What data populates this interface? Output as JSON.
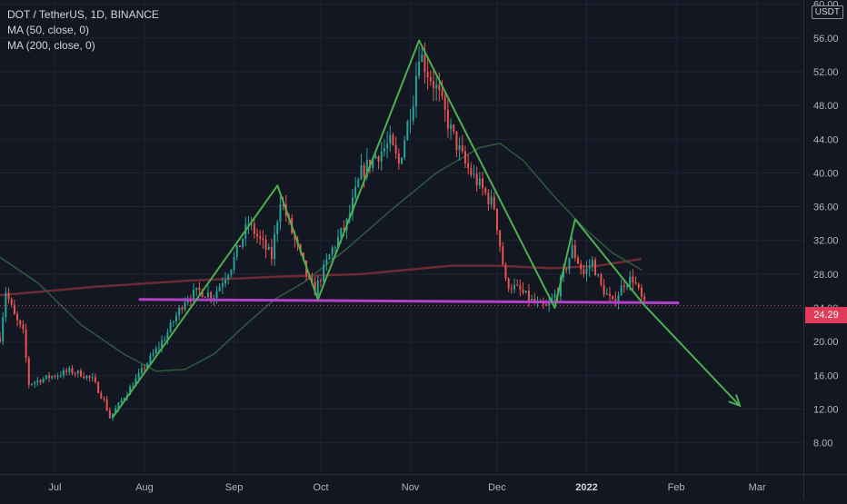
{
  "header": {
    "symbol_line": "DOT / TetherUS, 1D, BINANCE",
    "indicators": [
      "MA (50, close, 0)",
      "MA (200, close, 0)"
    ],
    "currency": "USDT"
  },
  "last_price": {
    "label": "24.29",
    "value": 24.29,
    "color": "#e03c5a"
  },
  "colors": {
    "background": "#131722",
    "up": "#26a69a",
    "down": "#ef5350",
    "ma50": "#2e5a3e",
    "ma200": "#6e2a33",
    "support": "#b040c8",
    "pattern": "#4caf50"
  },
  "chart_data": {
    "type": "candlestick",
    "title": "DOT / TetherUS, 1D, BINANCE",
    "y_axis": {
      "position": "right",
      "ticks": [
        8,
        12,
        16,
        20,
        24,
        28,
        32,
        36,
        40,
        44,
        48,
        52,
        56,
        60
      ],
      "tick_labels": [
        "8.00",
        "12.00",
        "16.00",
        "20.00",
        "24.00",
        "28.00",
        "32.00",
        "36.00",
        "40.00",
        "44.00",
        "48.00",
        "52.00",
        "56.00",
        "60.00"
      ],
      "range": [
        4.3,
        60.5
      ]
    },
    "x_axis": {
      "tick_labels": [
        "Jul",
        "Aug",
        "Sep",
        "Oct",
        "Nov",
        "Dec",
        "2022",
        "Feb",
        "Mar"
      ],
      "tick_dates": [
        "2021-07-01",
        "2021-08-01",
        "2021-09-01",
        "2021-10-01",
        "2021-11-01",
        "2021-12-01",
        "2022-01-01",
        "2022-02-01",
        "2022-03-01"
      ],
      "range": [
        "2021-06-12",
        "2022-03-17"
      ]
    },
    "price_path": [
      {
        "date": "2021-06-12",
        "price": 20.5
      },
      {
        "date": "2021-06-14",
        "price": 26.0
      },
      {
        "date": "2021-06-17",
        "price": 23.0
      },
      {
        "date": "2021-06-20",
        "price": 21.0
      },
      {
        "date": "2021-06-22",
        "price": 15.0
      },
      {
        "date": "2021-06-26",
        "price": 15.5
      },
      {
        "date": "2021-07-01",
        "price": 16.0
      },
      {
        "date": "2021-07-06",
        "price": 16.5
      },
      {
        "date": "2021-07-10",
        "price": 16.2
      },
      {
        "date": "2021-07-14",
        "price": 15.5
      },
      {
        "date": "2021-07-18",
        "price": 13.0
      },
      {
        "date": "2021-07-20",
        "price": 11.0
      },
      {
        "date": "2021-07-25",
        "price": 13.5
      },
      {
        "date": "2021-08-01",
        "price": 17.0
      },
      {
        "date": "2021-08-08",
        "price": 20.5
      },
      {
        "date": "2021-08-15",
        "price": 25.0
      },
      {
        "date": "2021-08-20",
        "price": 26.0
      },
      {
        "date": "2021-08-25",
        "price": 25.5
      },
      {
        "date": "2021-08-31",
        "price": 29.0
      },
      {
        "date": "2021-09-06",
        "price": 34.0
      },
      {
        "date": "2021-09-10",
        "price": 32.0
      },
      {
        "date": "2021-09-14",
        "price": 30.0
      },
      {
        "date": "2021-09-17",
        "price": 37.0
      },
      {
        "date": "2021-09-22",
        "price": 32.0
      },
      {
        "date": "2021-09-27",
        "price": 27.0
      },
      {
        "date": "2021-09-29",
        "price": 26.0
      },
      {
        "date": "2021-10-05",
        "price": 31.0
      },
      {
        "date": "2021-10-10",
        "price": 34.0
      },
      {
        "date": "2021-10-15",
        "price": 40.0
      },
      {
        "date": "2021-10-20",
        "price": 42.0
      },
      {
        "date": "2021-10-25",
        "price": 43.5
      },
      {
        "date": "2021-10-28",
        "price": 41.0
      },
      {
        "date": "2021-11-02",
        "price": 49.0
      },
      {
        "date": "2021-11-04",
        "price": 54.5
      },
      {
        "date": "2021-11-07",
        "price": 52.0
      },
      {
        "date": "2021-11-10",
        "price": 50.0
      },
      {
        "date": "2021-11-15",
        "price": 45.0
      },
      {
        "date": "2021-11-20",
        "price": 41.0
      },
      {
        "date": "2021-11-26",
        "price": 38.0
      },
      {
        "date": "2021-11-30",
        "price": 36.0
      },
      {
        "date": "2021-12-04",
        "price": 27.0
      },
      {
        "date": "2021-12-09",
        "price": 26.0
      },
      {
        "date": "2021-12-14",
        "price": 24.5
      },
      {
        "date": "2021-12-18",
        "price": 24.0
      },
      {
        "date": "2021-12-22",
        "price": 26.0
      },
      {
        "date": "2021-12-27",
        "price": 31.0
      },
      {
        "date": "2021-12-31",
        "price": 28.0
      },
      {
        "date": "2022-01-03",
        "price": 29.5
      },
      {
        "date": "2022-01-06",
        "price": 26.5
      },
      {
        "date": "2022-01-10",
        "price": 24.5
      },
      {
        "date": "2022-01-14",
        "price": 27.0
      },
      {
        "date": "2022-01-17",
        "price": 27.5
      },
      {
        "date": "2022-01-21",
        "price": 24.3
      }
    ],
    "ma50_path": [
      {
        "date": "2021-06-12",
        "price": 30.0
      },
      {
        "date": "2021-06-25",
        "price": 27.0
      },
      {
        "date": "2021-07-10",
        "price": 22.0
      },
      {
        "date": "2021-07-25",
        "price": 18.5
      },
      {
        "date": "2021-08-05",
        "price": 16.5
      },
      {
        "date": "2021-08-15",
        "price": 16.7
      },
      {
        "date": "2021-08-25",
        "price": 18.5
      },
      {
        "date": "2021-09-05",
        "price": 22.0
      },
      {
        "date": "2021-09-15",
        "price": 25.0
      },
      {
        "date": "2021-09-25",
        "price": 27.0
      },
      {
        "date": "2021-10-10",
        "price": 31.0
      },
      {
        "date": "2021-10-25",
        "price": 35.5
      },
      {
        "date": "2021-11-10",
        "price": 40.0
      },
      {
        "date": "2021-11-25",
        "price": 43.0
      },
      {
        "date": "2021-12-02",
        "price": 43.5
      },
      {
        "date": "2021-12-10",
        "price": 41.5
      },
      {
        "date": "2021-12-20",
        "price": 37.5
      },
      {
        "date": "2021-12-31",
        "price": 33.5
      },
      {
        "date": "2022-01-10",
        "price": 30.5
      },
      {
        "date": "2022-01-20",
        "price": 28.5
      }
    ],
    "ma200_path": [
      {
        "date": "2021-06-12",
        "price": 25.5
      },
      {
        "date": "2021-07-15",
        "price": 26.5
      },
      {
        "date": "2021-08-15",
        "price": 27.2
      },
      {
        "date": "2021-09-15",
        "price": 27.7
      },
      {
        "date": "2021-10-15",
        "price": 28.0
      },
      {
        "date": "2021-11-15",
        "price": 29.0
      },
      {
        "date": "2021-12-01",
        "price": 29.0
      },
      {
        "date": "2021-12-20",
        "price": 28.7
      },
      {
        "date": "2022-01-05",
        "price": 29.0
      },
      {
        "date": "2022-01-20",
        "price": 29.8
      }
    ],
    "annotations": {
      "support_line": {
        "from": {
          "date": "2021-07-30",
          "price": 25.0
        },
        "to": {
          "date": "2022-02-02",
          "price": 24.6
        }
      },
      "pattern_line": [
        {
          "date": "2021-07-21",
          "price": 11.0
        },
        {
          "date": "2021-09-16",
          "price": 38.5
        },
        {
          "date": "2021-09-30",
          "price": 25.0
        },
        {
          "date": "2021-11-04",
          "price": 55.7
        },
        {
          "date": "2021-12-21",
          "price": 24.0
        },
        {
          "date": "2021-12-28",
          "price": 34.5
        },
        {
          "date": "2022-01-21",
          "price": 24.3
        },
        {
          "date": "2022-02-23",
          "price": 12.4
        }
      ],
      "arrow_tip": {
        "date": "2022-02-23",
        "price": 12.4
      }
    }
  }
}
